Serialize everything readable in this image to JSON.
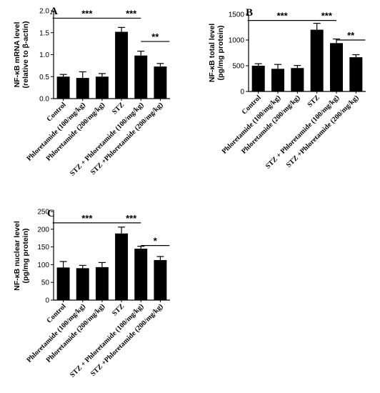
{
  "chart_data": [
    {
      "panel": "A",
      "type": "bar",
      "ylabel_lines": [
        "NF-κB mRNA level",
        "(relative to β-actin)"
      ],
      "categories": [
        "Control",
        "Phloretamide (100/mg/kg)",
        "Phloretamide (200/mg/kg)",
        "STZ",
        "STZ + Phloretamide (100/mg/kg)",
        "STZ +Phloretamide (200/mg/kg)"
      ],
      "values": [
        0.5,
        0.47,
        0.5,
        1.52,
        0.98,
        0.73
      ],
      "errors": [
        0.05,
        0.14,
        0.07,
        0.1,
        0.1,
        0.07
      ],
      "ylim": [
        0,
        2.0
      ],
      "yticks": [
        "0.0",
        "0.5",
        "1.0",
        "1.5",
        "2.0"
      ],
      "yticks_values": [
        0,
        0.5,
        1.0,
        1.5,
        2.0
      ],
      "significance": [
        {
          "label": "***",
          "from": 0,
          "to": 3,
          "y": 1.83
        },
        {
          "label": "***",
          "from": 3,
          "to": 4,
          "y": 1.83
        },
        {
          "label": "**",
          "from": 4,
          "to": 5,
          "y": 1.3
        }
      ]
    },
    {
      "panel": "B",
      "type": "bar",
      "ylabel_lines": [
        "NF-κB total level",
        "(pg/mg protein)"
      ],
      "categories": [
        "Control",
        "Phloretamide (100/mg/kg)",
        "Phloretamide (200/mg/kg)",
        "STZ",
        "STZ + Phloretamide (100/mg/kg)",
        "STZ +Phloretamide (200/mg/kg)"
      ],
      "values": [
        500,
        440,
        455,
        1200,
        940,
        665
      ],
      "errors": [
        40,
        85,
        50,
        125,
        80,
        50
      ],
      "ylim": [
        0,
        1500
      ],
      "yticks": [
        "0",
        "500",
        "1000",
        "1500"
      ],
      "yticks_values": [
        0,
        500,
        1000,
        1500
      ],
      "significance": [
        {
          "label": "***",
          "from": 0,
          "to": 3,
          "y": 1380
        },
        {
          "label": "***",
          "from": 3,
          "to": 4,
          "y": 1380
        },
        {
          "label": "**",
          "from": 4,
          "to": 5,
          "y": 1000
        }
      ]
    },
    {
      "panel": "C",
      "type": "bar",
      "ylabel_lines": [
        "NF-κB nuclear level",
        "(pg/mg protein)"
      ],
      "categories": [
        "Control",
        "Phloretamide (100/mg/kg)",
        "Phloretamide (200/mg/kg)",
        "STZ",
        "STZ + Phloretamide (100/mg/kg)",
        "STZ +Phloretamide (200/mg/kg)"
      ],
      "values": [
        92,
        90,
        93,
        188,
        145,
        113
      ],
      "errors": [
        17,
        8,
        13,
        18,
        7,
        10
      ],
      "ylim": [
        0,
        250
      ],
      "yticks": [
        "0",
        "50",
        "100",
        "150",
        "200",
        "250"
      ],
      "yticks_values": [
        0,
        50,
        100,
        150,
        200,
        250
      ],
      "significance": [
        {
          "label": "***",
          "from": 0,
          "to": 3,
          "y": 218
        },
        {
          "label": "***",
          "from": 3,
          "to": 4,
          "y": 218
        },
        {
          "label": "*",
          "from": 4,
          "to": 5,
          "y": 154
        }
      ]
    }
  ]
}
